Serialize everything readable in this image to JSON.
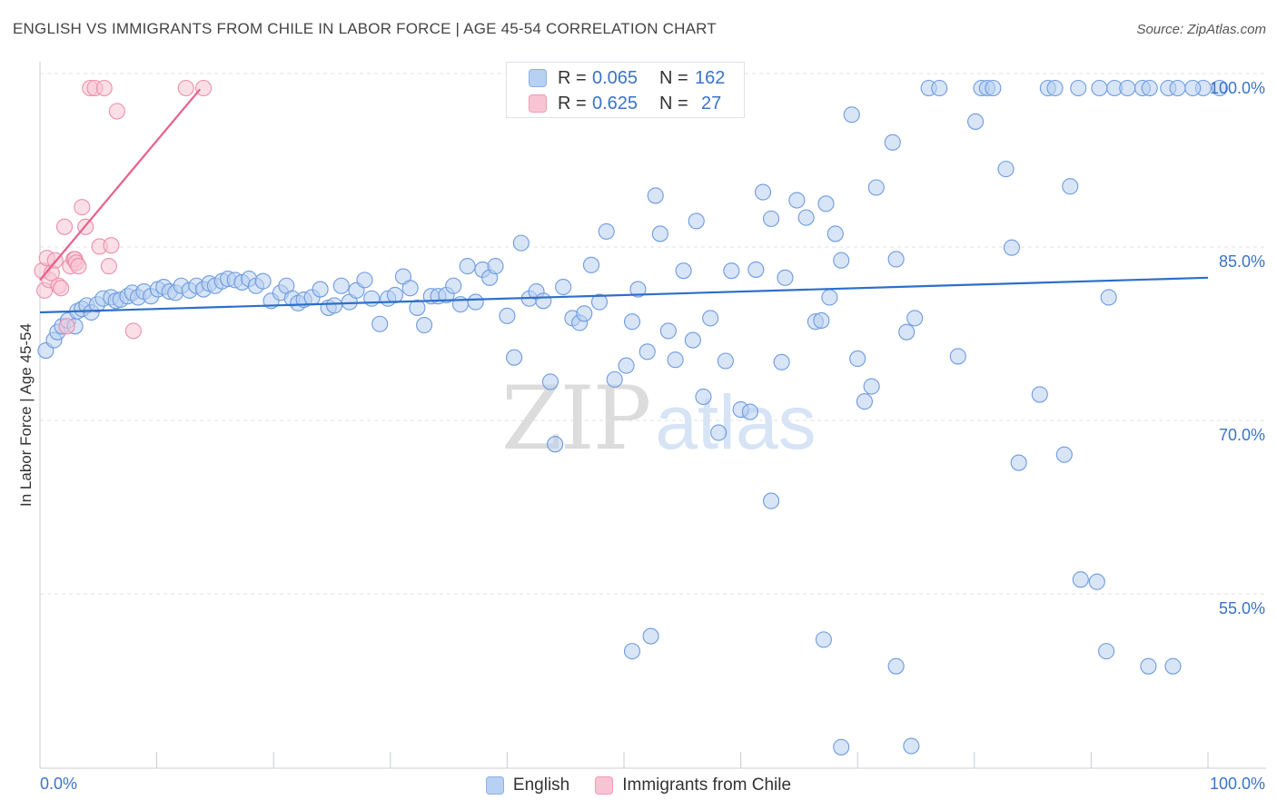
{
  "header": {
    "title": "ENGLISH VS IMMIGRANTS FROM CHILE IN LABOR FORCE | AGE 45-54 CORRELATION CHART",
    "source": "Source: ZipAtlas.com"
  },
  "stats": {
    "rows": [
      {
        "r_label": "R =",
        "r_value": "0.065",
        "n_label": "N =",
        "n_value": "162",
        "color": "#b8d0f1"
      },
      {
        "r_label": "R =",
        "r_value": "0.625",
        "n_label": "N =",
        "n_value": "27",
        "color": "#f8c4d3"
      }
    ]
  },
  "legend": {
    "items": [
      {
        "label": "English",
        "color": "#b8d0f1"
      },
      {
        "label": "Immigrants from Chile",
        "color": "#f8c4d3"
      }
    ]
  },
  "watermark": {
    "zip": "ZIP",
    "atlas": "atlas"
  },
  "chart_data": {
    "type": "scatter",
    "title": "ENGLISH VS IMMIGRANTS FROM CHILE IN LABOR FORCE | AGE 45-54 CORRELATION CHART",
    "xlabel": "",
    "ylabel": "In Labor Force | Age 45-54",
    "xlim": [
      0,
      100
    ],
    "ylim": [
      37,
      102
    ],
    "x_tick_labels": [
      "0.0%",
      "100.0%"
    ],
    "y_ticks": [
      {
        "value": 100,
        "label": "100.0%"
      },
      {
        "value": 85,
        "label": "85.0%"
      },
      {
        "value": 70,
        "label": "70.0%"
      },
      {
        "value": 55,
        "label": "55.0%"
      }
    ],
    "grid": "horizontal dashed",
    "colors": {
      "english": "#5b8fd9",
      "chile": "#ef8aa8",
      "english_line": "#2d6fc9",
      "chile_line": "#e8608a",
      "tick_text": "#3a73c9"
    },
    "series": [
      {
        "name": "English",
        "trend": {
          "x": [
            0,
            100
          ],
          "y": [
            80.6,
            83.6
          ]
        },
        "points": [
          [
            0.5,
            77.3
          ],
          [
            1.2,
            78.2
          ],
          [
            1.5,
            78.9
          ],
          [
            1.9,
            79.4
          ],
          [
            2.4,
            79.9
          ],
          [
            3.0,
            79.4
          ],
          [
            3.2,
            80.7
          ],
          [
            3.6,
            80.9
          ],
          [
            4.0,
            81.2
          ],
          [
            4.4,
            80.6
          ],
          [
            4.9,
            81.3
          ],
          [
            5.4,
            81.8
          ],
          [
            6.1,
            81.9
          ],
          [
            6.5,
            81.6
          ],
          [
            6.9,
            81.7
          ],
          [
            7.5,
            82.0
          ],
          [
            7.9,
            82.3
          ],
          [
            8.4,
            81.9
          ],
          [
            8.9,
            82.4
          ],
          [
            9.5,
            82.0
          ],
          [
            10.1,
            82.6
          ],
          [
            10.6,
            82.8
          ],
          [
            11.1,
            82.4
          ],
          [
            11.6,
            82.3
          ],
          [
            12.1,
            82.9
          ],
          [
            12.8,
            82.5
          ],
          [
            13.4,
            82.9
          ],
          [
            14.0,
            82.6
          ],
          [
            14.5,
            83.1
          ],
          [
            15.0,
            82.9
          ],
          [
            15.6,
            83.3
          ],
          [
            16.1,
            83.5
          ],
          [
            16.7,
            83.4
          ],
          [
            17.3,
            83.2
          ],
          [
            17.9,
            83.5
          ],
          [
            18.5,
            82.9
          ],
          [
            19.1,
            83.3
          ],
          [
            19.8,
            81.6
          ],
          [
            20.6,
            82.3
          ],
          [
            21.1,
            82.9
          ],
          [
            21.6,
            81.8
          ],
          [
            22.1,
            81.4
          ],
          [
            22.6,
            81.7
          ],
          [
            23.3,
            81.9
          ],
          [
            24.0,
            82.6
          ],
          [
            24.7,
            81.0
          ],
          [
            25.2,
            81.2
          ],
          [
            25.8,
            82.9
          ],
          [
            26.5,
            81.5
          ],
          [
            27.1,
            82.5
          ],
          [
            27.8,
            83.4
          ],
          [
            28.4,
            81.8
          ],
          [
            29.1,
            79.6
          ],
          [
            29.8,
            81.8
          ],
          [
            30.4,
            82.1
          ],
          [
            31.1,
            83.7
          ],
          [
            31.7,
            82.7
          ],
          [
            32.3,
            81.0
          ],
          [
            32.9,
            79.5
          ],
          [
            33.5,
            82.0
          ],
          [
            34.1,
            82.0
          ],
          [
            34.8,
            82.1
          ],
          [
            35.4,
            82.9
          ],
          [
            36.0,
            81.3
          ],
          [
            36.6,
            84.6
          ],
          [
            37.3,
            81.5
          ],
          [
            37.9,
            84.3
          ],
          [
            38.5,
            83.6
          ],
          [
            39.0,
            84.6
          ],
          [
            40.0,
            80.3
          ],
          [
            40.6,
            76.7
          ],
          [
            41.2,
            86.6
          ],
          [
            41.9,
            81.8
          ],
          [
            42.5,
            82.4
          ],
          [
            43.1,
            81.6
          ],
          [
            43.7,
            74.6
          ],
          [
            44.1,
            69.2
          ],
          [
            44.8,
            82.8
          ],
          [
            45.6,
            80.1
          ],
          [
            46.2,
            79.7
          ],
          [
            46.6,
            80.5
          ],
          [
            47.2,
            84.7
          ],
          [
            47.9,
            81.5
          ],
          [
            48.5,
            87.6
          ],
          [
            49.2,
            74.8
          ],
          [
            50.2,
            76.0
          ],
          [
            50.7,
            79.8
          ],
          [
            51.2,
            82.6
          ],
          [
            52.0,
            77.2
          ],
          [
            52.7,
            90.7
          ],
          [
            53.1,
            87.4
          ],
          [
            53.8,
            79.0
          ],
          [
            54.4,
            76.5
          ],
          [
            55.1,
            84.2
          ],
          [
            55.9,
            78.2
          ],
          [
            56.2,
            88.5
          ],
          [
            56.8,
            73.3
          ],
          [
            57.4,
            80.1
          ],
          [
            58.1,
            70.2
          ],
          [
            58.7,
            76.4
          ],
          [
            59.2,
            84.2
          ],
          [
            60.0,
            72.2
          ],
          [
            60.8,
            72.0
          ],
          [
            61.3,
            84.3
          ],
          [
            61.9,
            91.0
          ],
          [
            62.6,
            88.7
          ],
          [
            63.5,
            76.3
          ],
          [
            63.8,
            83.6
          ],
          [
            64.8,
            90.3
          ],
          [
            65.6,
            88.8
          ],
          [
            66.4,
            79.8
          ],
          [
            67.3,
            90.0
          ],
          [
            68.1,
            87.4
          ],
          [
            68.6,
            85.1
          ],
          [
            67.6,
            81.9
          ],
          [
            66.9,
            79.9
          ],
          [
            69.5,
            97.7
          ],
          [
            70.0,
            76.6
          ],
          [
            70.6,
            72.9
          ],
          [
            71.2,
            74.2
          ],
          [
            71.6,
            91.4
          ],
          [
            73.0,
            95.3
          ],
          [
            73.3,
            85.2
          ],
          [
            74.2,
            78.9
          ],
          [
            74.9,
            80.1
          ],
          [
            76.1,
            100.0
          ],
          [
            77.0,
            100.0
          ],
          [
            78.6,
            76.8
          ],
          [
            80.1,
            97.1
          ],
          [
            80.6,
            100.0
          ],
          [
            81.1,
            100.0
          ],
          [
            81.6,
            100.0
          ],
          [
            82.7,
            93.0
          ],
          [
            83.2,
            86.2
          ],
          [
            83.8,
            67.6
          ],
          [
            86.3,
            100.0
          ],
          [
            86.9,
            100.0
          ],
          [
            88.9,
            100.0
          ],
          [
            92.0,
            100.0
          ],
          [
            93.1,
            100.0
          ],
          [
            94.4,
            100.0
          ],
          [
            96.6,
            100.0
          ],
          [
            101.0,
            100.0
          ],
          [
            85.6,
            73.5
          ],
          [
            87.7,
            68.3
          ],
          [
            89.1,
            57.5
          ],
          [
            90.5,
            57.3
          ],
          [
            88.2,
            91.5
          ],
          [
            90.7,
            100.0
          ],
          [
            91.5,
            81.9
          ],
          [
            95.0,
            100.0
          ],
          [
            97.4,
            100.0
          ],
          [
            99.6,
            100.0
          ],
          [
            98.7,
            100.0
          ],
          [
            50.7,
            51.3
          ],
          [
            52.3,
            52.6
          ],
          [
            67.1,
            52.3
          ],
          [
            73.3,
            50.0
          ],
          [
            91.3,
            51.3
          ],
          [
            94.9,
            50.0
          ],
          [
            97.0,
            50.0
          ],
          [
            68.6,
            43.0
          ],
          [
            74.6,
            43.1
          ],
          [
            62.6,
            64.3
          ]
        ]
      },
      {
        "name": "Immigrants from Chile",
        "trend": {
          "x": [
            0,
            13.7
          ],
          "y": [
            83.4,
            99.9
          ]
        },
        "points": [
          [
            0.2,
            84.2
          ],
          [
            0.4,
            82.5
          ],
          [
            0.6,
            85.3
          ],
          [
            0.8,
            83.4
          ],
          [
            1.0,
            84.0
          ],
          [
            1.3,
            85.1
          ],
          [
            1.6,
            82.9
          ],
          [
            1.8,
            82.7
          ],
          [
            2.1,
            88.0
          ],
          [
            2.3,
            79.4
          ],
          [
            2.6,
            84.6
          ],
          [
            2.9,
            85.2
          ],
          [
            3.0,
            85.2
          ],
          [
            3.1,
            84.9
          ],
          [
            3.3,
            84.6
          ],
          [
            3.6,
            89.7
          ],
          [
            3.9,
            88.0
          ],
          [
            4.3,
            100.0
          ],
          [
            4.7,
            100.0
          ],
          [
            5.1,
            86.3
          ],
          [
            5.5,
            100.0
          ],
          [
            5.9,
            84.6
          ],
          [
            6.1,
            86.4
          ],
          [
            6.6,
            98.0
          ],
          [
            8.0,
            79.0
          ],
          [
            12.5,
            100.0
          ],
          [
            14.0,
            100.0
          ]
        ]
      }
    ]
  }
}
